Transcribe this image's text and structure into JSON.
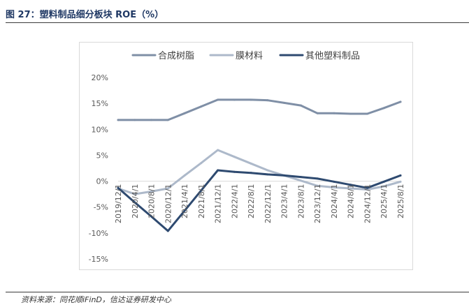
{
  "figure": {
    "title": "图 27：塑料制品细分板块 ROE（%）",
    "source": "资料来源：同花顺iFinD，信达证券研发中心"
  },
  "chart_data": {
    "type": "line",
    "title": "",
    "xlabel": "",
    "ylabel": "",
    "categories": [
      "2019/12/1",
      "2020/4/1",
      "2020/8/1",
      "2020/12/1",
      "2021/4/1",
      "2021/8/1",
      "2021/12/1",
      "2022/4/1",
      "2022/8/1",
      "2022/12/1",
      "2023/4/1",
      "2023/8/1",
      "2023/12/1",
      "2024/4/1",
      "2024/8/1",
      "2024/12/1",
      "2025/4/1",
      "2025/8/1"
    ],
    "ylim": [
      -15,
      20
    ],
    "yticks": [
      "20%",
      "15%",
      "10%",
      "5%",
      "0%",
      "-5%",
      "-10%",
      "-15%"
    ],
    "ytick_values": [
      20,
      15,
      10,
      5,
      0,
      -5,
      -10,
      -15
    ],
    "legend_position": "top",
    "series": [
      {
        "name": "合成树脂",
        "color": "#7f8fa6",
        "values": [
          11.8,
          11.8,
          11.8,
          11.8,
          13.1,
          14.4,
          15.7,
          15.7,
          15.7,
          15.6,
          15.1,
          14.6,
          13.1,
          13.1,
          13.0,
          13.0,
          14.1,
          15.3
        ]
      },
      {
        "name": "膜材料",
        "color": "#adb9ca",
        "values": [
          -1.4,
          -2.5,
          -2.0,
          -1.4,
          1.1,
          3.5,
          6.0,
          4.7,
          3.4,
          2.1,
          1.1,
          0.1,
          -0.9,
          -1.2,
          -1.4,
          -1.6,
          -1.0,
          -0.1
        ]
      },
      {
        "name": "其他塑料制品",
        "color": "#2e4a70",
        "values": [
          -1.3,
          -4.1,
          -6.8,
          -9.6,
          -5.7,
          -1.8,
          2.1,
          1.8,
          1.6,
          1.3,
          1.1,
          0.8,
          0.5,
          -0.1,
          -0.7,
          -1.3,
          -0.1,
          1.1
        ]
      }
    ]
  }
}
